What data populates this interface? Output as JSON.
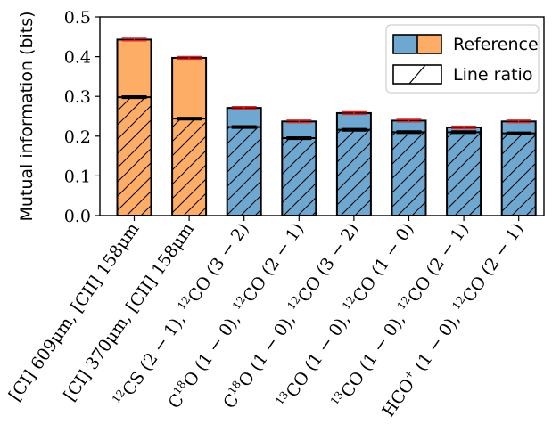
{
  "chart_data": {
    "type": "bar",
    "ylabel": "Mutual information (bits)",
    "ylim": [
      0,
      0.5
    ],
    "yticks": [
      "0.0",
      "0.1",
      "0.2",
      "0.3",
      "0.4",
      "0.5"
    ],
    "categories": [
      {
        "main": "[CI] 609μm, [CII] 158μm"
      },
      {
        "main": "[CI] 370μm, [CII] 158μm"
      },
      {
        "parts": [
          [
            "12",
            "sup"
          ],
          [
            "CS (2 − 1), ",
            ""
          ],
          [
            "12",
            "sup"
          ],
          [
            "CO (3 − 2)",
            ""
          ]
        ]
      },
      {
        "parts": [
          [
            "C",
            ""
          ],
          [
            "18",
            "sup"
          ],
          [
            "O (1 − 0), ",
            ""
          ],
          [
            "12",
            "sup"
          ],
          [
            "CO (2 − 1)",
            ""
          ]
        ]
      },
      {
        "parts": [
          [
            "C",
            ""
          ],
          [
            "18",
            "sup"
          ],
          [
            "O (1 − 0), ",
            ""
          ],
          [
            "12",
            "sup"
          ],
          [
            "CO (3 − 2)",
            ""
          ]
        ]
      },
      {
        "parts": [
          [
            "13",
            "sup"
          ],
          [
            "CO (1 − 0), ",
            ""
          ],
          [
            "12",
            "sup"
          ],
          [
            "CO (1 − 0)",
            ""
          ]
        ]
      },
      {
        "parts": [
          [
            "13",
            "sup"
          ],
          [
            "CO (1 − 0), ",
            ""
          ],
          [
            "12",
            "sup"
          ],
          [
            "CO (2 − 1)",
            ""
          ]
        ]
      },
      {
        "parts": [
          [
            "HCO",
            ""
          ],
          [
            "+",
            "sup"
          ],
          [
            " (1 − 0), ",
            ""
          ],
          [
            "12",
            "sup"
          ],
          [
            "CO (2 − 1)",
            ""
          ]
        ]
      }
    ],
    "series": [
      {
        "name": "Reference",
        "values": [
          0.443,
          0.397,
          0.271,
          0.237,
          0.258,
          0.239,
          0.222,
          0.237
        ],
        "errors": [
          0.003,
          0.003,
          0.003,
          0.003,
          0.003,
          0.003,
          0.003,
          0.003
        ]
      },
      {
        "name": "Line ratio",
        "values": [
          0.298,
          0.244,
          0.223,
          0.195,
          0.216,
          0.21,
          0.21,
          0.207
        ],
        "errors": [
          0.003,
          0.003,
          0.003,
          0.003,
          0.003,
          0.003,
          0.003,
          0.003
        ]
      }
    ],
    "category_colors": [
      "#fdad66",
      "#fdad66",
      "#6ea7d0",
      "#6ea7d0",
      "#6ea7d0",
      "#6ea7d0",
      "#6ea7d0",
      "#6ea7d0"
    ],
    "legend": {
      "placement": "top-right",
      "entries": [
        {
          "label": "Reference",
          "colors": [
            "#6ea7d0",
            "#fdad66"
          ]
        },
        {
          "label": "Line ratio",
          "hatch": true
        }
      ]
    },
    "colors": {
      "blue": "#6ea7d0",
      "orange": "#fdad66",
      "reference_error": "#d62728",
      "line_ratio_error": "#000000"
    },
    "grid": false
  }
}
